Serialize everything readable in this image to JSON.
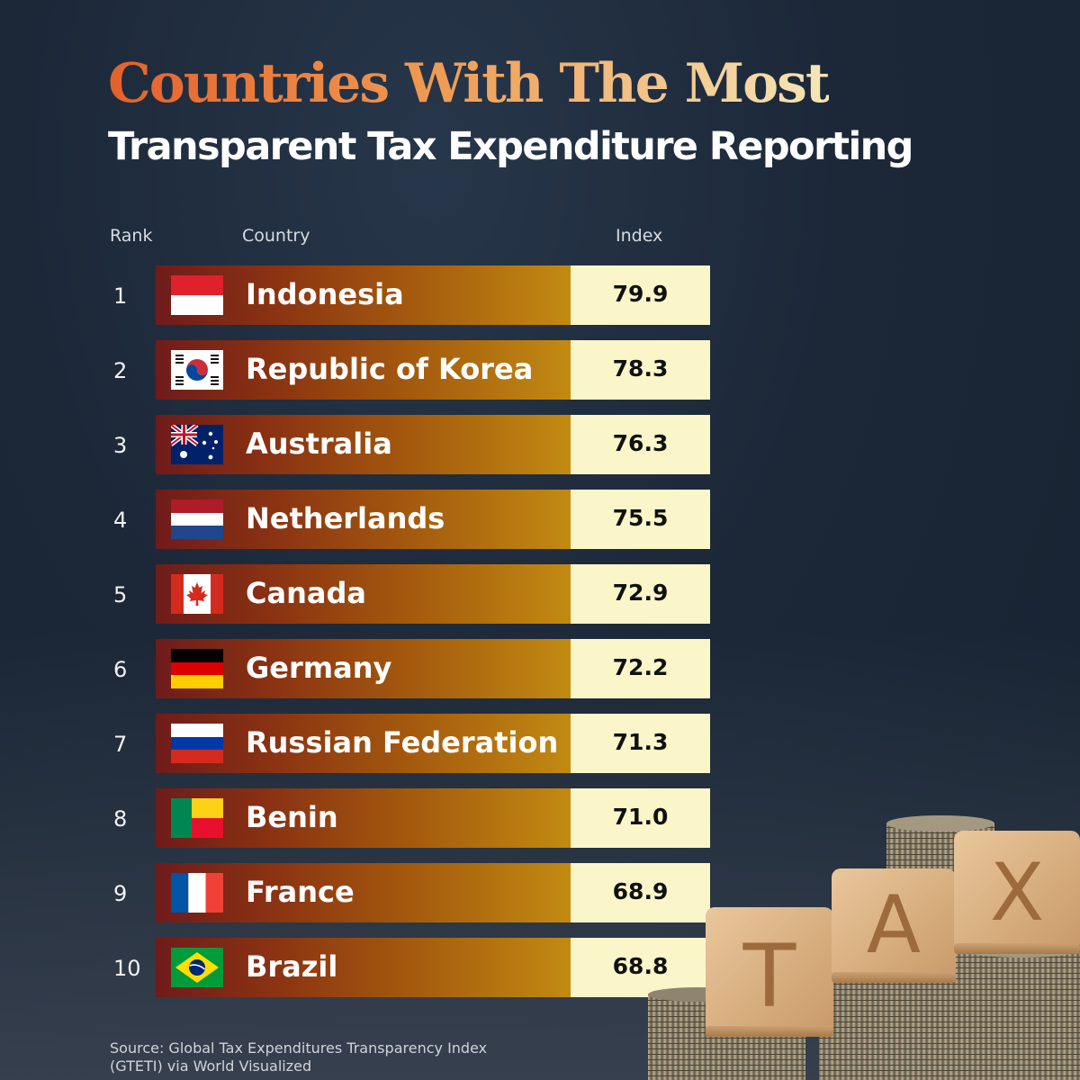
{
  "title": {
    "line1": "Countries With The Most",
    "line2": "Transparent Tax Expenditure Reporting"
  },
  "headers": {
    "rank": "Rank",
    "country": "Country",
    "index": "Index"
  },
  "source": {
    "line1": "Source: Global Tax Expenditures Transparency Index",
    "line2": "(GTETI) via World Visualized"
  },
  "decoration": {
    "blocks": [
      "T",
      "A",
      "X"
    ]
  },
  "colors": {
    "title_gradient_start": "#e3612b",
    "title_gradient_end": "#f5e6b8",
    "bar_start": "#6f1b1b",
    "bar_end": "#c28a12",
    "value_box": "#fbf6c9"
  },
  "chart_data": {
    "type": "table",
    "columns": [
      "Rank",
      "Country",
      "Index"
    ],
    "rows": [
      {
        "rank": "1",
        "country": "Indonesia",
        "index": "79.9",
        "flag": "indonesia-flag"
      },
      {
        "rank": "2",
        "country": "Republic of Korea",
        "index": "78.3",
        "flag": "south-korea-flag"
      },
      {
        "rank": "3",
        "country": "Australia",
        "index": "76.3",
        "flag": "australia-flag"
      },
      {
        "rank": "4",
        "country": "Netherlands",
        "index": "75.5",
        "flag": "netherlands-flag"
      },
      {
        "rank": "5",
        "country": "Canada",
        "index": "72.9",
        "flag": "canada-flag"
      },
      {
        "rank": "6",
        "country": "Germany",
        "index": "72.2",
        "flag": "germany-flag"
      },
      {
        "rank": "7",
        "country": "Russian Federation",
        "index": "71.3",
        "flag": "russia-flag"
      },
      {
        "rank": "8",
        "country": "Benin",
        "index": "71.0",
        "flag": "benin-flag"
      },
      {
        "rank": "9",
        "country": "France",
        "index": "68.9",
        "flag": "france-flag"
      },
      {
        "rank": "10",
        "country": "Brazil",
        "index": "68.8",
        "flag": "brazil-flag"
      }
    ]
  }
}
